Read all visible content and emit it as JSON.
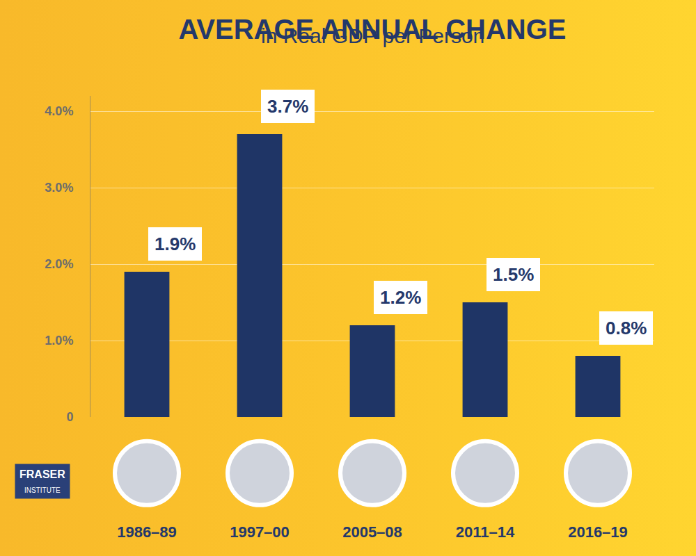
{
  "chart_data": {
    "type": "bar",
    "title": "AVERAGE ANNUAL CHANGE",
    "subtitle": "in Real GDP per Person",
    "categories": [
      "1986–89",
      "1997–00",
      "2005–08",
      "2011–14",
      "2016–19"
    ],
    "values": [
      1.9,
      3.7,
      1.2,
      1.5,
      0.8
    ],
    "value_labels": [
      "1.9%",
      "3.7%",
      "1.2%",
      "1.5%",
      "0.8%"
    ],
    "data_labels": true,
    "color": "#1f3566",
    "ylim": [
      0,
      4.2
    ],
    "yticks": [
      0,
      {
        "value": 1,
        "label": "1.0%"
      },
      {
        "value": 2,
        "label": "2.0%"
      },
      {
        "value": 3,
        "label": "3.0%"
      },
      {
        "value": 4,
        "label": "4.0%"
      }
    ],
    "grid": true,
    "annotations": [
      "FRASER",
      "INSTITUTE"
    ]
  }
}
